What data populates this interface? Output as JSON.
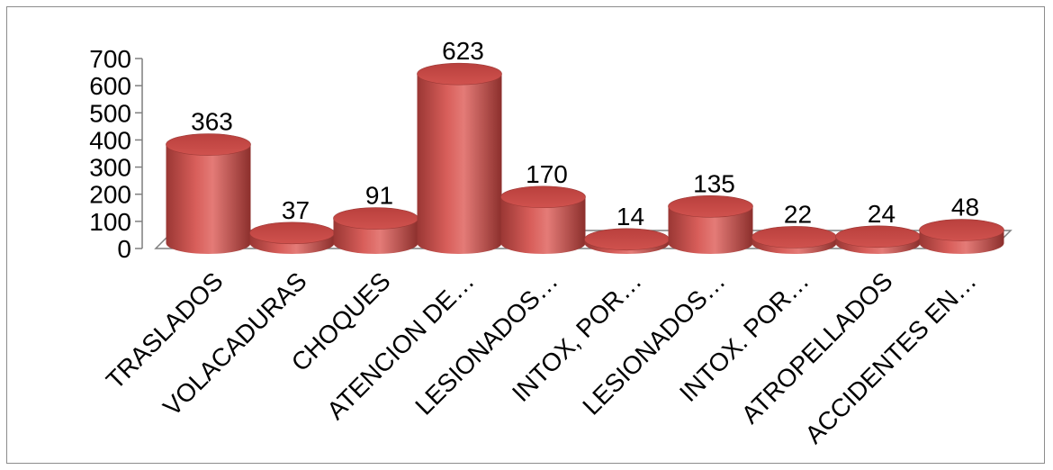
{
  "chart_data": {
    "type": "bar",
    "style": "3d-cylinder",
    "title": "",
    "xlabel": "",
    "ylabel": "",
    "ylim": [
      0,
      700
    ],
    "yticks": [
      0,
      100,
      200,
      300,
      400,
      500,
      600,
      700
    ],
    "grid": false,
    "legend": "none",
    "categories": [
      "TRASLADOS",
      "VOLACADURAS",
      "CHOQUES",
      "ATENCION DE…",
      "LESIONADOS…",
      "INTOX, POR…",
      "LESIONADOS…",
      "INTOX. POR…",
      "ATROPELLADOS",
      "ACCIDENTES EN…"
    ],
    "values": [
      363,
      37,
      91,
      623,
      170,
      14,
      135,
      22,
      24,
      48
    ],
    "data_labels": [
      "363",
      "37",
      "91",
      "623",
      "170",
      "14",
      "135",
      "22",
      "24",
      "48"
    ],
    "colors": {
      "bar": "#c0504d",
      "bar_dark": "#8c2f2c",
      "bar_light": "#e07a76",
      "bar_top": "#b8423f",
      "axis": "#7f7f7f"
    }
  }
}
